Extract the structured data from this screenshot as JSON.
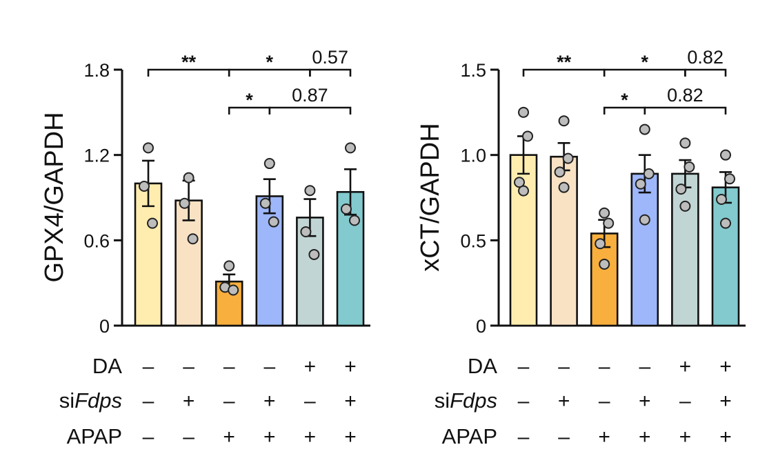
{
  "conditions": {
    "rows": [
      {
        "label": "DA",
        "label_prefix": "",
        "label_italic": "",
        "values": [
          "–",
          "–",
          "–",
          "–",
          "+",
          "+"
        ]
      },
      {
        "label": "siFdps",
        "label_prefix": "si",
        "label_italic": "Fdps",
        "values": [
          "–",
          "+",
          "–",
          "+",
          "–",
          "+"
        ]
      },
      {
        "label": "APAP",
        "label_prefix": "",
        "label_italic": "",
        "values": [
          "–",
          "–",
          "+",
          "+",
          "+",
          "+"
        ]
      }
    ]
  },
  "chart_data": [
    {
      "type": "bar",
      "title": "",
      "xlabel": "",
      "ylabel": "GPX4/GAPDH",
      "ylim": [
        0,
        1.8
      ],
      "yticks": [
        0,
        0.6,
        1.2,
        1.8
      ],
      "ytick_labels": [
        "0",
        "0.6",
        "1.2",
        "1.8"
      ],
      "colors": [
        "#FFEDB0",
        "#F9E2C4",
        "#F9AF3E",
        "#9EB7FA",
        "#C1D6D4",
        "#82CACE"
      ],
      "values": [
        1.0,
        0.88,
        0.31,
        0.91,
        0.76,
        0.94
      ],
      "errors": [
        0.16,
        0.14,
        0.05,
        0.12,
        0.13,
        0.16
      ],
      "points": [
        [
          1.25,
          0.98,
          0.72
        ],
        [
          1.04,
          0.86,
          0.61
        ],
        [
          0.42,
          0.27,
          0.25
        ],
        [
          1.14,
          0.86,
          0.73
        ],
        [
          0.95,
          0.66,
          0.5
        ],
        [
          1.25,
          0.82,
          0.74
        ]
      ],
      "annotations": [
        {
          "from": 0,
          "to": 2,
          "level": 2,
          "text": "**"
        },
        {
          "from": 2,
          "to": 4,
          "level": 2,
          "text": "*"
        },
        {
          "from": 4,
          "to": 5,
          "level": 2,
          "text": "0.57"
        },
        {
          "from": 2,
          "to": 3,
          "level": 1,
          "text": "*"
        },
        {
          "from": 3,
          "to": 5,
          "level": 1,
          "text": "0.87"
        }
      ]
    },
    {
      "type": "bar",
      "title": "",
      "xlabel": "",
      "ylabel": "xCT/GAPDH",
      "ylim": [
        0,
        1.5
      ],
      "yticks": [
        0,
        0.5,
        1.0,
        1.5
      ],
      "ytick_labels": [
        "0",
        "0.5",
        "1.0",
        "1.5"
      ],
      "colors": [
        "#FFEDB0",
        "#F9E2C4",
        "#F9AF3E",
        "#9EB7FA",
        "#C1D6D4",
        "#82CACE"
      ],
      "values": [
        1.0,
        0.99,
        0.54,
        0.89,
        0.89,
        0.81
      ],
      "errors": [
        0.11,
        0.08,
        0.08,
        0.11,
        0.08,
        0.09
      ],
      "points": [
        [
          1.25,
          1.11,
          0.84,
          0.79
        ],
        [
          1.2,
          0.98,
          0.9,
          0.81
        ],
        [
          0.66,
          0.6,
          0.48,
          0.36
        ],
        [
          1.15,
          0.89,
          0.83,
          0.62
        ],
        [
          1.07,
          0.93,
          0.8,
          0.7
        ],
        [
          1.0,
          0.86,
          0.74,
          0.6
        ]
      ],
      "annotations": [
        {
          "from": 0,
          "to": 2,
          "level": 2,
          "text": "**"
        },
        {
          "from": 2,
          "to": 4,
          "level": 2,
          "text": "*"
        },
        {
          "from": 4,
          "to": 5,
          "level": 2,
          "text": "0.82"
        },
        {
          "from": 2,
          "to": 3,
          "level": 1,
          "text": "*"
        },
        {
          "from": 3,
          "to": 5,
          "level": 1,
          "text": "0.82"
        }
      ]
    }
  ]
}
